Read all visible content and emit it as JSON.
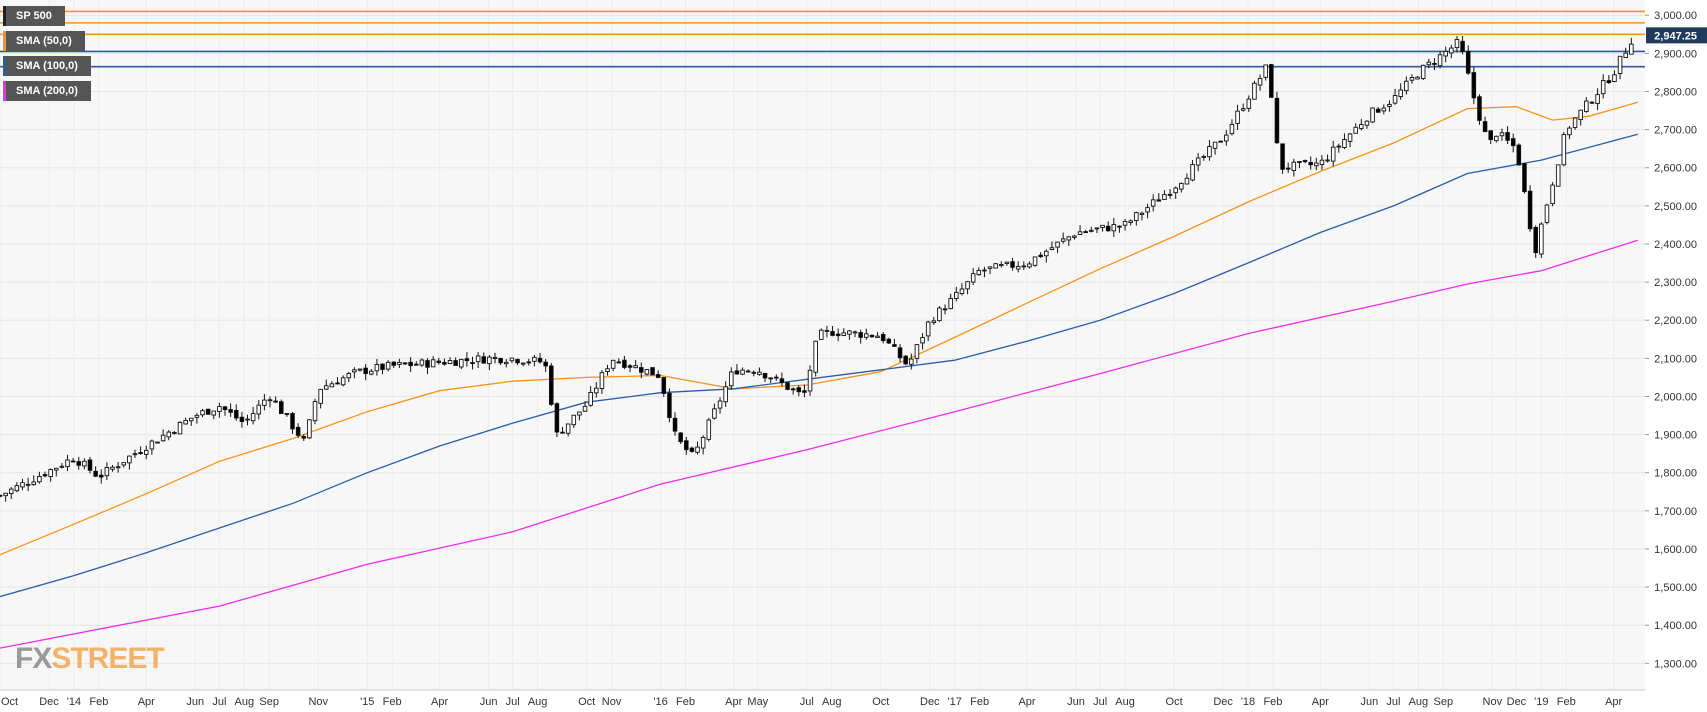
{
  "chart_data": {
    "type": "candlestick",
    "title": "SP 500",
    "ylim": [
      1230,
      3040
    ],
    "y_ticks": [
      1300,
      1400,
      1500,
      1600,
      1700,
      1800,
      1900,
      2000,
      2100,
      2200,
      2300,
      2400,
      2500,
      2600,
      2700,
      2800,
      2900,
      3000
    ],
    "y_tick_labels": [
      "1,300.00",
      "1,400.00",
      "1,500.00",
      "1,600.00",
      "1,700.00",
      "1,800.00",
      "1,900.00",
      "2,000.00",
      "2,100.00",
      "2,200.00",
      "2,300.00",
      "2,400.00",
      "2,500.00",
      "2,600.00",
      "2,700.00",
      "2,800.00",
      "2,900.00",
      "3,000.00"
    ],
    "x_range": [
      "2013-10-01",
      "2019-05-10"
    ],
    "x_ticks": [
      {
        "label": "Oct",
        "date": "2013-10-01"
      },
      {
        "label": "Dec",
        "date": "2013-12-01"
      },
      {
        "label": "'14",
        "date": "2014-01-01"
      },
      {
        "label": "Feb",
        "date": "2014-02-01"
      },
      {
        "label": "Apr",
        "date": "2014-04-01"
      },
      {
        "label": "Jun",
        "date": "2014-06-01"
      },
      {
        "label": "Jul",
        "date": "2014-07-01"
      },
      {
        "label": "Aug",
        "date": "2014-08-01"
      },
      {
        "label": "Sep",
        "date": "2014-09-01"
      },
      {
        "label": "Nov",
        "date": "2014-11-01"
      },
      {
        "label": "'15",
        "date": "2015-01-01"
      },
      {
        "label": "Feb",
        "date": "2015-02-01"
      },
      {
        "label": "Apr",
        "date": "2015-04-01"
      },
      {
        "label": "Jun",
        "date": "2015-06-01"
      },
      {
        "label": "Jul",
        "date": "2015-07-01"
      },
      {
        "label": "Aug",
        "date": "2015-08-01"
      },
      {
        "label": "Oct",
        "date": "2015-10-01"
      },
      {
        "label": "Nov",
        "date": "2015-11-01"
      },
      {
        "label": "'16",
        "date": "2016-01-01"
      },
      {
        "label": "Feb",
        "date": "2016-02-01"
      },
      {
        "label": "Apr",
        "date": "2016-04-01"
      },
      {
        "label": "May",
        "date": "2016-05-01"
      },
      {
        "label": "Jul",
        "date": "2016-07-01"
      },
      {
        "label": "Aug",
        "date": "2016-08-01"
      },
      {
        "label": "Oct",
        "date": "2016-10-01"
      },
      {
        "label": "Dec",
        "date": "2016-12-01"
      },
      {
        "label": "'17",
        "date": "2017-01-01"
      },
      {
        "label": "Feb",
        "date": "2017-02-01"
      },
      {
        "label": "Apr",
        "date": "2017-04-01"
      },
      {
        "label": "Jun",
        "date": "2017-06-01"
      },
      {
        "label": "Jul",
        "date": "2017-07-01"
      },
      {
        "label": "Aug",
        "date": "2017-08-01"
      },
      {
        "label": "Oct",
        "date": "2017-10-01"
      },
      {
        "label": "Dec",
        "date": "2017-12-01"
      },
      {
        "label": "'18",
        "date": "2018-01-01"
      },
      {
        "label": "Feb",
        "date": "2018-02-01"
      },
      {
        "label": "Apr",
        "date": "2018-04-01"
      },
      {
        "label": "Jun",
        "date": "2018-06-01"
      },
      {
        "label": "Jul",
        "date": "2018-07-01"
      },
      {
        "label": "Aug",
        "date": "2018-08-01"
      },
      {
        "label": "Sep",
        "date": "2018-09-01"
      },
      {
        "label": "Nov",
        "date": "2018-11-01"
      },
      {
        "label": "Dec",
        "date": "2018-12-01"
      },
      {
        "label": "'19",
        "date": "2019-01-01"
      },
      {
        "label": "Feb",
        "date": "2019-02-01"
      },
      {
        "label": "Apr",
        "date": "2019-04-01"
      }
    ],
    "last_price": 2947.25,
    "last_price_label": "2,947.25",
    "grid": true,
    "legend_position": "top-left",
    "series": [
      {
        "name": "SP 500",
        "color": "#000000",
        "kind": "weekly-candles",
        "anchors": [
          [
            "2013-10-01",
            1740
          ],
          [
            "2013-12-01",
            1805
          ],
          [
            "2014-01-01",
            1840
          ],
          [
            "2014-02-01",
            1790
          ],
          [
            "2014-04-01",
            1870
          ],
          [
            "2014-06-01",
            1950
          ],
          [
            "2014-07-01",
            1975
          ],
          [
            "2014-08-01",
            1930
          ],
          [
            "2014-09-01",
            2005
          ],
          [
            "2014-10-15",
            1880
          ],
          [
            "2014-11-01",
            2020
          ],
          [
            "2014-12-15",
            2060
          ],
          [
            "2015-01-01",
            2070
          ],
          [
            "2015-02-01",
            2080
          ],
          [
            "2015-04-01",
            2090
          ],
          [
            "2015-06-01",
            2100
          ],
          [
            "2015-07-01",
            2100
          ],
          [
            "2015-08-10",
            2090
          ],
          [
            "2015-08-25",
            1900
          ],
          [
            "2015-10-01",
            1980
          ],
          [
            "2015-11-01",
            2100
          ],
          [
            "2015-12-31",
            2055
          ],
          [
            "2016-01-20",
            1890
          ],
          [
            "2016-02-11",
            1840
          ],
          [
            "2016-04-01",
            2070
          ],
          [
            "2016-05-01",
            2070
          ],
          [
            "2016-06-27",
            2000
          ],
          [
            "2016-07-15",
            2160
          ],
          [
            "2016-08-01",
            2170
          ],
          [
            "2016-10-01",
            2160
          ],
          [
            "2016-11-04",
            2080
          ],
          [
            "2016-12-01",
            2200
          ],
          [
            "2017-01-01",
            2260
          ],
          [
            "2017-02-01",
            2330
          ],
          [
            "2017-04-01",
            2350
          ],
          [
            "2017-06-01",
            2430
          ],
          [
            "2017-07-01",
            2440
          ],
          [
            "2017-08-01",
            2450
          ],
          [
            "2017-10-01",
            2550
          ],
          [
            "2017-12-01",
            2680
          ],
          [
            "2018-01-26",
            2870
          ],
          [
            "2018-02-09",
            2600
          ],
          [
            "2018-04-01",
            2610
          ],
          [
            "2018-06-01",
            2740
          ],
          [
            "2018-07-01",
            2780
          ],
          [
            "2018-08-01",
            2850
          ],
          [
            "2018-09-21",
            2930
          ],
          [
            "2018-10-12",
            2760
          ],
          [
            "2018-10-29",
            2650
          ],
          [
            "2018-11-01",
            2700
          ],
          [
            "2018-12-01",
            2650
          ],
          [
            "2018-12-24",
            2380
          ],
          [
            "2019-01-01",
            2450
          ],
          [
            "2019-02-01",
            2700
          ],
          [
            "2019-04-01",
            2850
          ],
          [
            "2019-04-26",
            2947
          ]
        ]
      },
      {
        "name": "SMA (50,0)",
        "color": "#f7931a",
        "anchors": [
          [
            "2013-10-01",
            1585
          ],
          [
            "2014-01-01",
            1665
          ],
          [
            "2014-04-01",
            1745
          ],
          [
            "2014-07-01",
            1830
          ],
          [
            "2014-10-01",
            1890
          ],
          [
            "2015-01-01",
            1960
          ],
          [
            "2015-04-01",
            2015
          ],
          [
            "2015-07-01",
            2040
          ],
          [
            "2015-10-01",
            2050
          ],
          [
            "2016-01-01",
            2055
          ],
          [
            "2016-04-01",
            2020
          ],
          [
            "2016-07-01",
            2030
          ],
          [
            "2016-10-01",
            2065
          ],
          [
            "2017-01-01",
            2155
          ],
          [
            "2017-04-01",
            2245
          ],
          [
            "2017-07-01",
            2335
          ],
          [
            "2017-10-01",
            2420
          ],
          [
            "2018-01-01",
            2510
          ],
          [
            "2018-04-01",
            2590
          ],
          [
            "2018-07-01",
            2665
          ],
          [
            "2018-10-01",
            2755
          ],
          [
            "2018-12-01",
            2760
          ],
          [
            "2019-01-15",
            2725
          ],
          [
            "2019-03-01",
            2735
          ],
          [
            "2019-05-01",
            2772
          ]
        ]
      },
      {
        "name": "SMA (100,0)",
        "color": "#2a5caa",
        "anchors": [
          [
            "2013-10-01",
            1475
          ],
          [
            "2014-01-01",
            1530
          ],
          [
            "2014-04-01",
            1590
          ],
          [
            "2014-07-01",
            1655
          ],
          [
            "2014-10-01",
            1720
          ],
          [
            "2015-01-01",
            1800
          ],
          [
            "2015-04-01",
            1870
          ],
          [
            "2015-07-01",
            1930
          ],
          [
            "2015-10-01",
            1985
          ],
          [
            "2016-01-01",
            2010
          ],
          [
            "2016-04-01",
            2020
          ],
          [
            "2016-07-01",
            2045
          ],
          [
            "2016-10-01",
            2070
          ],
          [
            "2017-01-01",
            2095
          ],
          [
            "2017-04-01",
            2145
          ],
          [
            "2017-07-01",
            2200
          ],
          [
            "2017-10-01",
            2270
          ],
          [
            "2018-01-01",
            2350
          ],
          [
            "2018-04-01",
            2430
          ],
          [
            "2018-07-01",
            2500
          ],
          [
            "2018-10-01",
            2585
          ],
          [
            "2019-01-01",
            2620
          ],
          [
            "2019-05-01",
            2688
          ]
        ]
      },
      {
        "name": "SMA (200,0)",
        "color": "#ee2ee8",
        "anchors": [
          [
            "2013-10-01",
            1340
          ],
          [
            "2014-07-01",
            1450
          ],
          [
            "2015-01-01",
            1560
          ],
          [
            "2015-07-01",
            1645
          ],
          [
            "2016-01-01",
            1770
          ],
          [
            "2016-07-01",
            1860
          ],
          [
            "2017-01-01",
            1960
          ],
          [
            "2017-07-01",
            2060
          ],
          [
            "2018-01-01",
            2165
          ],
          [
            "2018-07-01",
            2250
          ],
          [
            "2018-10-01",
            2295
          ],
          [
            "2019-01-01",
            2330
          ],
          [
            "2019-05-01",
            2410
          ]
        ]
      }
    ],
    "horizontal_levels": [
      {
        "value": 3010,
        "color": "#f7931a"
      },
      {
        "value": 2980,
        "color": "#f7931a"
      },
      {
        "value": 2950,
        "color": "#f7931a"
      },
      {
        "value": 2905,
        "color": "#2a5caa"
      },
      {
        "value": 2865,
        "color": "#2a5caa"
      }
    ]
  },
  "legend": {
    "items": [
      {
        "label": "SP 500",
        "color": "#222222"
      },
      {
        "label": "SMA (50,0)",
        "color": "#f7931a"
      },
      {
        "label": "SMA (100,0)",
        "color": "#2a5caa"
      },
      {
        "label": "SMA (200,0)",
        "color": "#ee2ee8"
      }
    ]
  },
  "watermark": {
    "part1": "FX",
    "part2": "STREET"
  }
}
